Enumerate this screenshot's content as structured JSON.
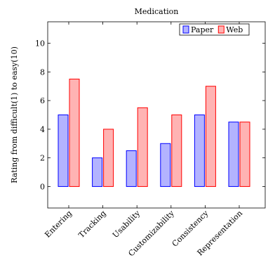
{
  "chart_data": {
    "type": "bar",
    "title": "Medication",
    "xlabel": "",
    "ylabel": "Rating from difficult(1) to easy(10)",
    "categories": [
      "Entering",
      "Tracking",
      "Usability",
      "Customizability",
      "Consistency",
      "Representation"
    ],
    "series": [
      {
        "name": "Paper",
        "values": [
          5,
          2,
          2.5,
          3,
          5,
          4.5
        ],
        "fill": "#b3b3ff",
        "stroke": "#0000ff"
      },
      {
        "name": "Web",
        "values": [
          7.5,
          4,
          5.5,
          5,
          7,
          4.5
        ],
        "fill": "#ffb3b3",
        "stroke": "#ff0000"
      }
    ],
    "yticks": [
      0,
      2,
      4,
      6,
      8,
      10
    ],
    "ylim": [
      -1.5,
      11.5
    ],
    "grid": false,
    "legend_position": "top-right"
  }
}
